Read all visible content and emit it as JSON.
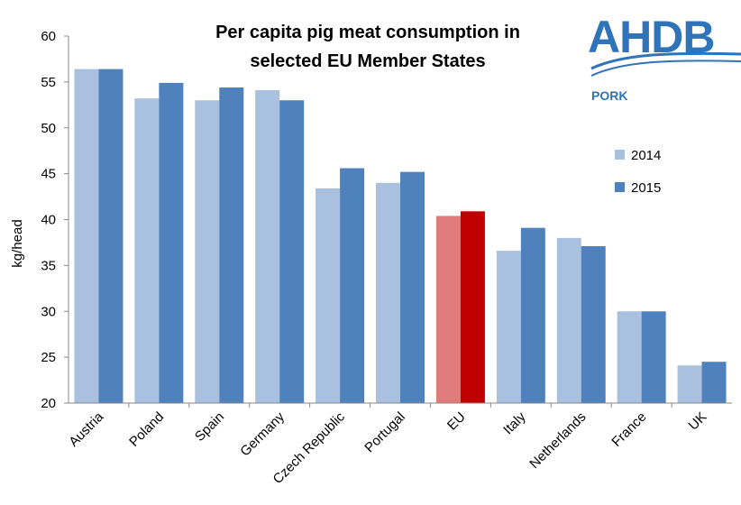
{
  "logo": {
    "text": "AHDB",
    "sub": "PORK"
  },
  "chart_data": {
    "type": "bar",
    "title_lines": [
      "Per capita pig meat consumption in",
      "selected EU Member States"
    ],
    "ylabel": "kg/head",
    "xlabel": "",
    "ylim": [
      20,
      60
    ],
    "yticks": [
      20,
      25,
      30,
      35,
      40,
      45,
      50,
      55,
      60
    ],
    "grid": false,
    "legend_position": "right",
    "categories": [
      "Austria",
      "Poland",
      "Spain",
      "Germany",
      "Czech Republic",
      "Portugal",
      "EU",
      "Italy",
      "Netherlands",
      "France",
      "UK"
    ],
    "series": [
      {
        "name": "2014",
        "color": "#a9c0de",
        "values": [
          56.4,
          53.2,
          53.0,
          54.1,
          43.4,
          44.0,
          40.4,
          36.6,
          38.0,
          30.0,
          24.1
        ]
      },
      {
        "name": "2015",
        "color": "#4f81bd",
        "values": [
          56.4,
          54.9,
          54.4,
          53.0,
          45.6,
          45.2,
          40.9,
          39.1,
          37.1,
          30.0,
          24.5
        ]
      }
    ],
    "highlight": {
      "category": "EU",
      "colors": [
        "#e07b7b",
        "#c00000"
      ]
    }
  }
}
